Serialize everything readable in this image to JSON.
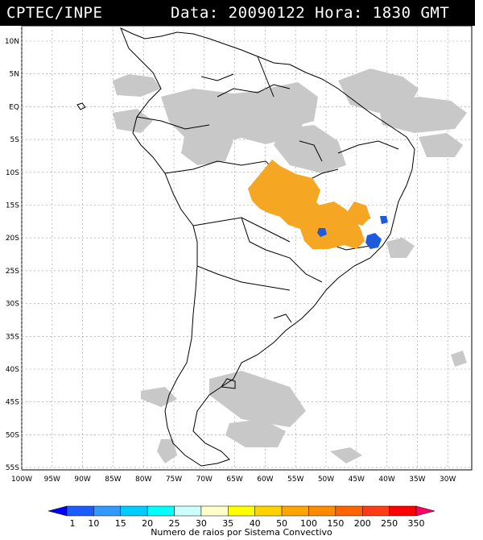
{
  "header": {
    "org": "CPTEC/INPE",
    "date_label": "Data:",
    "date_value": "20090122",
    "time_label": "Hora:",
    "time_value": "1830 GMT"
  },
  "map": {
    "lat_labels": [
      "10N",
      "5N",
      "EQ",
      "5S",
      "10S",
      "15S",
      "20S",
      "25S",
      "30S",
      "35S",
      "40S",
      "45S",
      "50S",
      "55S"
    ],
    "lon_labels": [
      "100W",
      "95W",
      "90W",
      "85W",
      "80W",
      "75W",
      "70W",
      "65W",
      "60W",
      "55W",
      "50W",
      "45W",
      "40W",
      "35W",
      "30W"
    ],
    "cloud_color": "#c8c8c8",
    "orange_color": "#f5a623",
    "blue_color": "#1e5adc"
  },
  "legend": {
    "ticks": [
      "1",
      "10",
      "15",
      "20",
      "25",
      "30",
      "35",
      "40",
      "50",
      "100",
      "150",
      "200",
      "250",
      "350"
    ],
    "colors": [
      "#0000ff",
      "#1a5cff",
      "#3399ff",
      "#00ccff",
      "#00ffff",
      "#ccffff",
      "#ffffcc",
      "#ffff00",
      "#ffd200",
      "#ffa500",
      "#ff8c00",
      "#ff6400",
      "#ff3c14",
      "#ff0000",
      "#ff0066"
    ],
    "caption": "Numero de raios por Sistema Convectivo"
  }
}
